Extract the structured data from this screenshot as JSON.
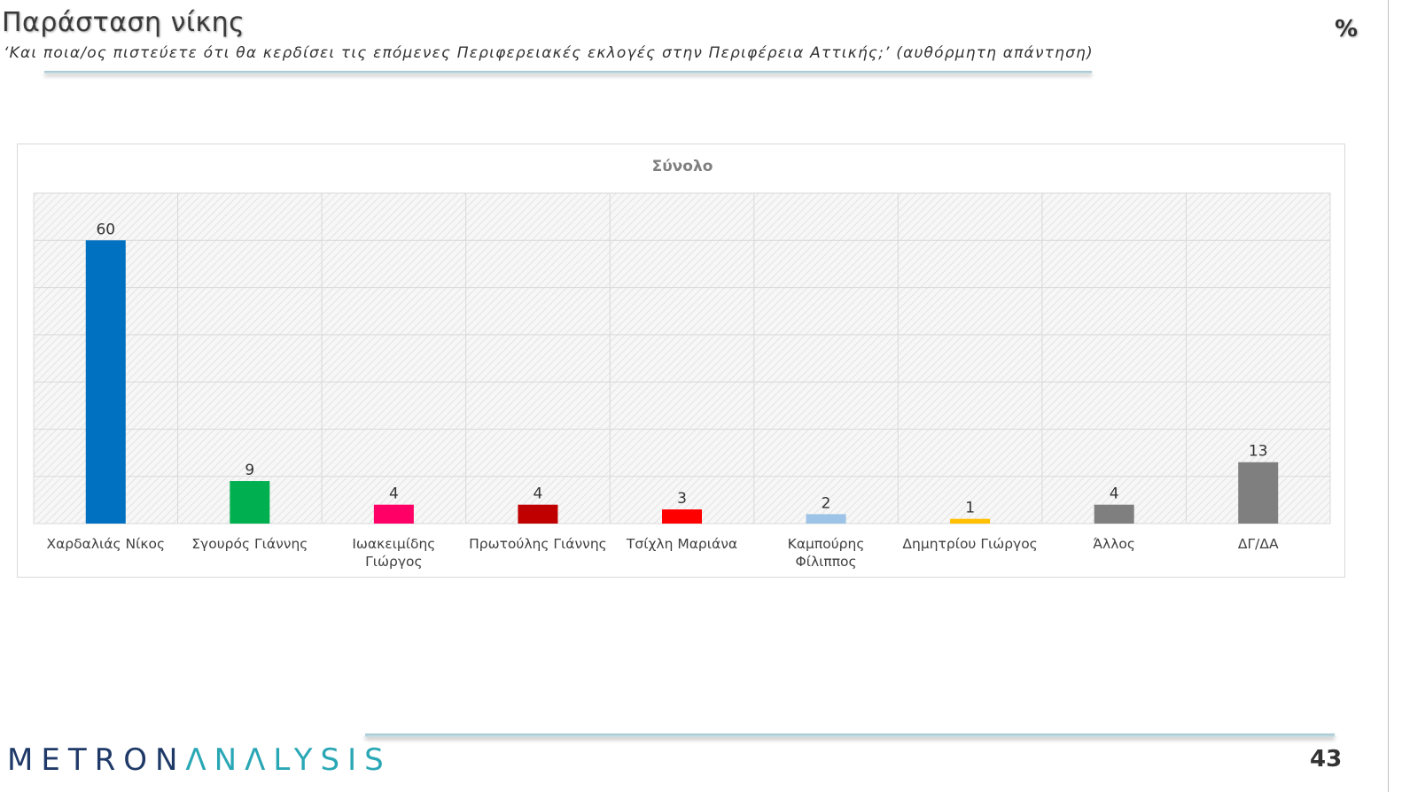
{
  "header": {
    "title": "Παράσταση νίκης",
    "subtitle": "‘Και ποια/ος πιστεύετε ότι θα κερδίσει τις επόμενες Περιφερειακές εκλογές στην Περιφέρεια Αττικής;’ (αυθόρμητη απάντηση)",
    "unit": "%"
  },
  "footer": {
    "logo_part1": "METRON",
    "logo_part2": "ΛNΛLYSIS",
    "page_number": "43"
  },
  "chart_data": {
    "type": "bar",
    "title": "Σύνολο",
    "xlabel": "",
    "ylabel": "",
    "ylim": [
      0,
      70
    ],
    "grid": true,
    "legend": "none",
    "categories": [
      "Χαρδαλιάς Νίκος",
      "Σγουρός Γιάννης",
      "Ιωακειμίδης Γιώργος",
      "Πρωτούλης Γιάννης",
      "Τσίχλη Μαριάνα",
      "Καμπούρης Φίλιππος",
      "Δημητρίου Γιώργος",
      "Άλλος",
      "ΔΓ/ΔΑ"
    ],
    "category_lines": [
      [
        "Χαρδαλιάς Νίκος"
      ],
      [
        "Σγουρός Γιάννης"
      ],
      [
        "Ιωακειμίδης",
        "Γιώργος"
      ],
      [
        "Πρωτούλης Γιάννης"
      ],
      [
        "Τσίχλη Μαριάνα"
      ],
      [
        "Καμπούρης",
        "Φίλιππος"
      ],
      [
        "Δημητρίου Γιώργος"
      ],
      [
        "Άλλος"
      ],
      [
        "ΔΓ/ΔΑ"
      ]
    ],
    "values": [
      60,
      9,
      4,
      4,
      3,
      2,
      1,
      4,
      13
    ],
    "colors": [
      "#0070c0",
      "#00b050",
      "#ff0066",
      "#c00000",
      "#ff0000",
      "#9dc3e6",
      "#ffc000",
      "#7f7f7f",
      "#7f7f7f"
    ]
  }
}
